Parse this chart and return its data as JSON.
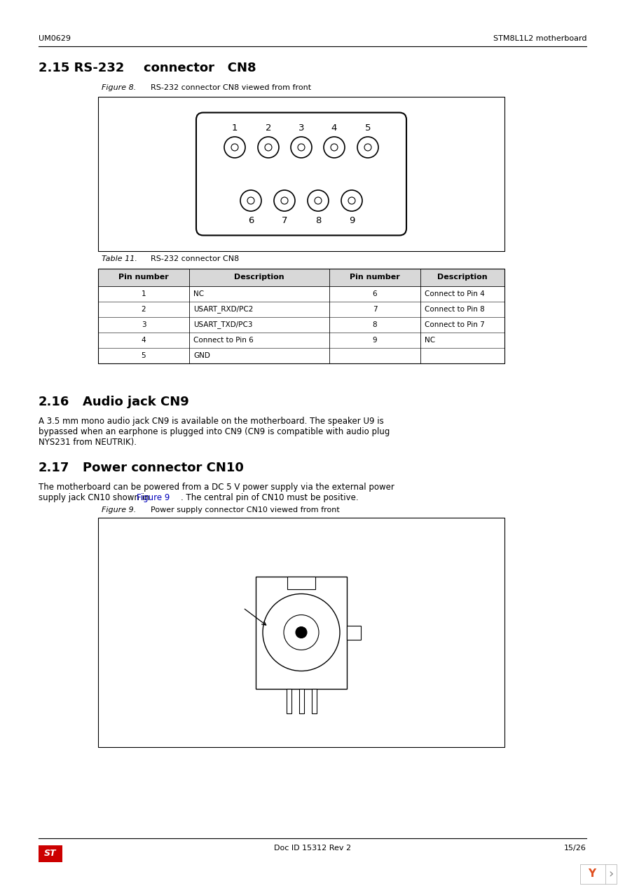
{
  "page_header_left": "UM0629",
  "page_header_right": "STM8L1L2 motherboard",
  "section_215_title": "2.15 RS-232",
  "section_215_subtitle": "connector   CN8",
  "figure8_label": "Figure 8.",
  "figure8_title": "RS-232 connector CN8 viewed from front",
  "table11_label": "Table 11.",
  "table11_title": "RS-232 connector CN8",
  "table_headers": [
    "Pin number",
    "Description",
    "Pin number",
    "Description"
  ],
  "table_rows": [
    [
      "1",
      "NC",
      "6",
      "Connect to Pin 4"
    ],
    [
      "2",
      "USART_RXD/PC2",
      "7",
      "Connect to Pin 8"
    ],
    [
      "3",
      "USART_TXD/PC3",
      "8",
      "Connect to Pin 7"
    ],
    [
      "4",
      "Connect to Pin 6",
      "9",
      "NC"
    ],
    [
      "5",
      "GND",
      "",
      ""
    ]
  ],
  "section_216_title": "2.16",
  "section_216_subtitle": "Audio jack CN9",
  "section_216_text": "A 3.5 mm mono audio jack CN9 is available on the motherboard. The speaker U9 is\nbypassed when an earphone is plugged into CN9 (CN9 is compatible with audio plug\nNYS231 from NEUTRIK).",
  "section_217_title": "2.17",
  "section_217_subtitle": "Power connector CN10",
  "section_217_text1": "The motherboard can be powered from a DC 5 V power supply via the external power",
  "section_217_text2": "supply jack CN10 shown in",
  "section_217_text3": "Figure 9",
  "section_217_text4": ". The central pin of CN10 must be positive.",
  "figure9_label": "Figure 9.",
  "figure9_title": "Power supply connector CN10 viewed from front",
  "page_footer_doc": "Doc ID 15312 Rev 2",
  "page_footer_page": "15/26",
  "bg_color": "#ffffff",
  "text_color": "#000000",
  "header_line_color": "#000000",
  "table_border_color": "#000000",
  "section_title_color": "#000000",
  "figure_box_color": "#000000"
}
